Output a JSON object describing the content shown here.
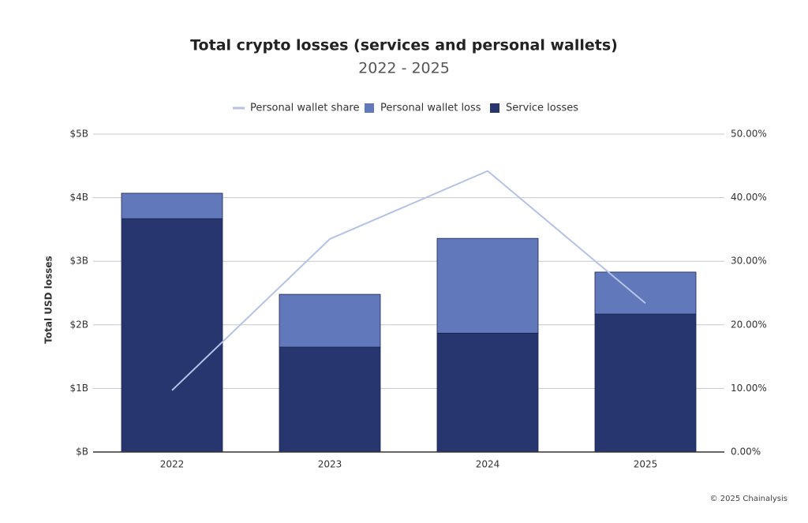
{
  "chart_data": {
    "type": "bar",
    "stacked": true,
    "title": "Total crypto losses (services and personal wallets)",
    "subtitle": "2022 - 2025",
    "y_label": "Total USD losses",
    "source": "© 2025 Chainalysis",
    "categories": [
      "2022",
      "2023",
      "2024",
      "2025"
    ],
    "series": [
      {
        "name": "Personal wallet share",
        "type": "line",
        "axis": "y2",
        "color": "#b4c2e6",
        "values": [
          9.7,
          33.5,
          44.2,
          23.4
        ]
      },
      {
        "name": "Personal wallet loss",
        "type": "bar",
        "color": "#6178bb",
        "values": [
          0.4,
          0.83,
          1.49,
          0.66
        ]
      },
      {
        "name": "Service losses",
        "type": "bar",
        "color": "#27366f",
        "values": [
          3.67,
          1.65,
          1.87,
          2.17
        ]
      }
    ],
    "ylim": [
      0,
      5
    ],
    "yticks": [
      {
        "value": 0,
        "label": "$B"
      },
      {
        "value": 1,
        "label": "$1B"
      },
      {
        "value": 2,
        "label": "$2B"
      },
      {
        "value": 3,
        "label": "$3B"
      },
      {
        "value": 4,
        "label": "$4B"
      },
      {
        "value": 5,
        "label": "$5B"
      }
    ],
    "y2lim": [
      0,
      50
    ],
    "y2ticks": [
      {
        "value": 0,
        "label": "0.00%"
      },
      {
        "value": 10,
        "label": "10.00%"
      },
      {
        "value": 20,
        "label": "20.00%"
      },
      {
        "value": 30,
        "label": "30.00%"
      },
      {
        "value": 40,
        "label": "40.00%"
      },
      {
        "value": 50,
        "label": "50.00%"
      }
    ],
    "grid": true,
    "legend": "top"
  }
}
